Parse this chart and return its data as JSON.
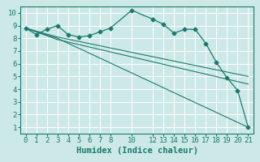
{
  "title": "",
  "xlabel": "Humidex (Indice chaleur)",
  "ylabel": "",
  "background_color": "#cce9e7",
  "grid_color": "#ffffff",
  "line_color": "#1a7a6e",
  "series": [
    {
      "x": [
        0,
        1,
        2,
        3,
        4,
        5,
        6,
        7,
        8,
        10,
        12,
        13,
        14,
        15,
        16,
        17,
        18,
        19,
        20,
        21
      ],
      "y": [
        8.8,
        8.3,
        8.7,
        9.0,
        8.3,
        8.1,
        8.2,
        8.5,
        8.8,
        10.2,
        9.5,
        9.1,
        8.4,
        8.7,
        8.7,
        7.6,
        6.1,
        4.9,
        3.9,
        1.0
      ]
    },
    {
      "x": [
        0,
        3,
        21
      ],
      "y": [
        8.8,
        8.0,
        1.0
      ]
    },
    {
      "x": [
        0,
        3,
        21
      ],
      "y": [
        8.8,
        7.9,
        4.4
      ]
    },
    {
      "x": [
        0,
        3,
        21
      ],
      "y": [
        8.8,
        8.1,
        5.0
      ]
    }
  ],
  "xlim": [
    -0.5,
    21.5
  ],
  "ylim": [
    0.5,
    10.5
  ],
  "xticks": [
    0,
    1,
    2,
    3,
    4,
    5,
    6,
    7,
    8,
    10,
    12,
    13,
    14,
    15,
    16,
    17,
    18,
    19,
    20,
    21
  ],
  "yticks": [
    1,
    2,
    3,
    4,
    5,
    6,
    7,
    8,
    9,
    10
  ],
  "tick_fontsize": 6.5,
  "xlabel_fontsize": 7.5,
  "fig_width": 3.2,
  "fig_height": 2.0,
  "dpi": 100
}
